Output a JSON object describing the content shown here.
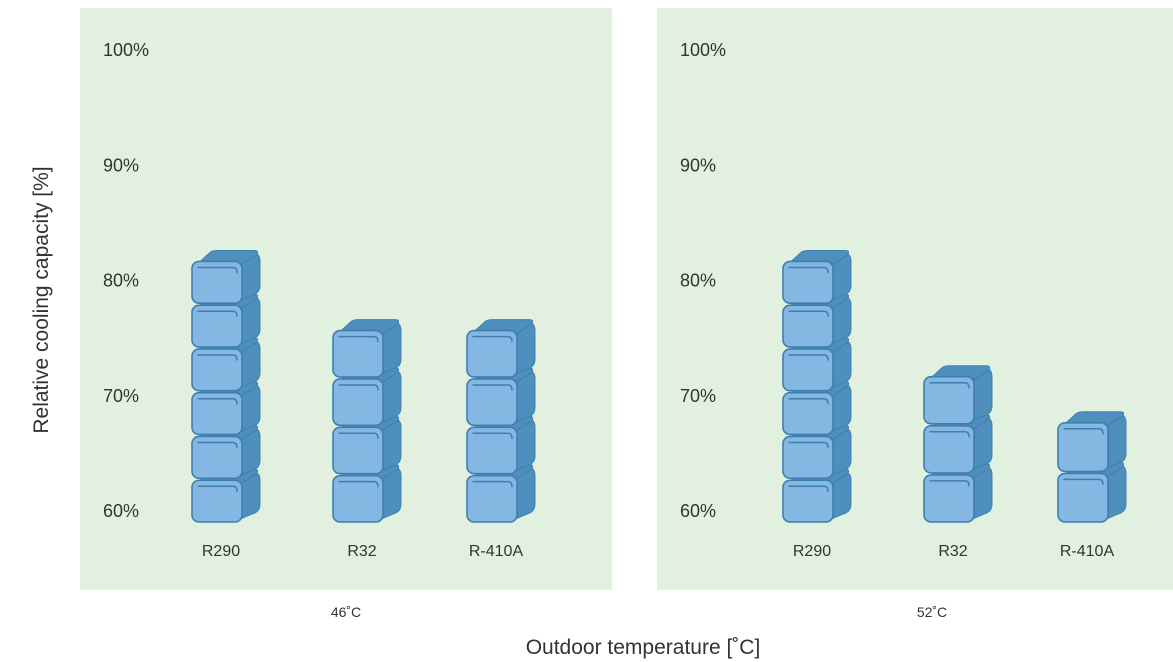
{
  "chart_data": {
    "type": "bar",
    "ylabel": "Relative cooling capacity [%]",
    "xlabel": "Outdoor temperature [˚C]",
    "yticks": [
      "60%",
      "70%",
      "80%",
      "90%",
      "100%"
    ],
    "ylim": [
      56,
      104
    ],
    "grid": false,
    "bar_style": "stacked ice-cube icons",
    "colors": {
      "panel": "#e2f1df",
      "cube_front": "#85b7e3",
      "cube_side": "#4f8fbd",
      "cube_edge": "#3f7fae"
    },
    "panels": [
      {
        "temperature": "46˚C",
        "categories": [
          "R290",
          "R32",
          "R-410A"
        ],
        "values": [
          82,
          76,
          76
        ]
      },
      {
        "temperature": "52˚C",
        "categories": [
          "R290",
          "R32",
          "R-410A"
        ],
        "values": [
          82,
          72,
          68
        ]
      }
    ]
  }
}
